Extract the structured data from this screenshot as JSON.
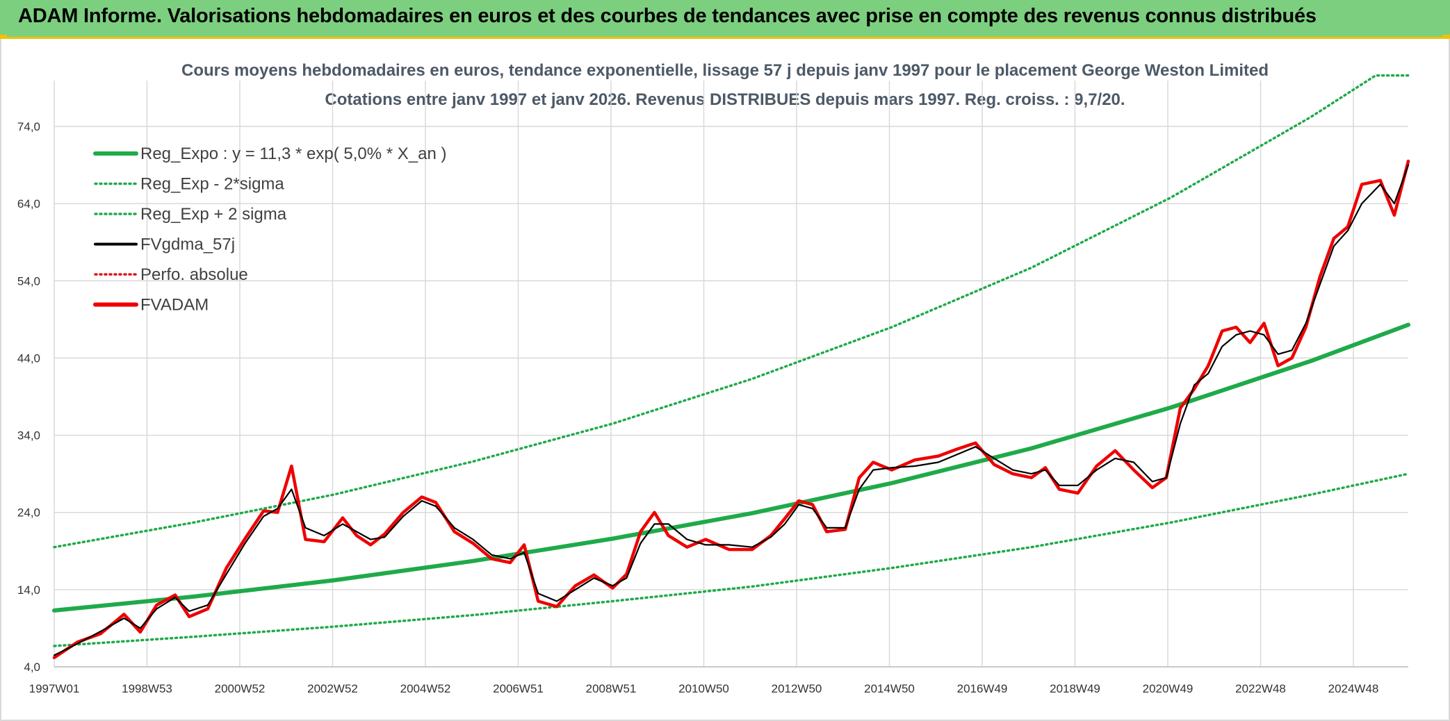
{
  "banner": {
    "title": "ADAM Informe. Valorisations hebdomadaires en euros et des courbes de tendances avec prise en compte des revenus connus distribués"
  },
  "chart_data": {
    "type": "line",
    "title": "Cours moyens hebdomadaires en euros, tendance exponentielle, lissage 57 j depuis janv 1997 pour le placement George Weston Limited",
    "subtitle": "Cotations entre janv 1997 et janv 2026. Revenus DISTRIBUES depuis mars 1997. Reg. croiss. : 9,7/20.",
    "xlabel": "",
    "ylabel": "",
    "ylim": [
      4,
      81
    ],
    "yticks": [
      "4,0",
      "14,0",
      "24,0",
      "34,0",
      "44,0",
      "54,0",
      "64,0",
      "74,0"
    ],
    "xticks": [
      "1997W01",
      "1998W53",
      "2000W52",
      "2002W52",
      "2004W52",
      "2006W51",
      "2008W51",
      "2010W50",
      "2012W50",
      "2014W50",
      "2016W49",
      "2018W49",
      "2020W49",
      "2022W48",
      "2024W48"
    ],
    "xlim": [
      1997.0,
      2026.1
    ],
    "grid": true,
    "legend_position": "top-left",
    "colors": {
      "trend": "#1faa4a",
      "band": "#1faa4a",
      "smooth": "#000000",
      "perfo": "#e0141c",
      "price": "#ee0000"
    },
    "series": [
      {
        "name": "Reg_Expo : y = 11,3 * exp( 5,0% *  X_an )",
        "style": "solid-thick",
        "color": "#1faa4a",
        "x": [
          1997.0,
          2000.0,
          2003.0,
          2006.0,
          2009.0,
          2012.0,
          2015.0,
          2018.0,
          2021.0,
          2024.0,
          2026.1
        ],
        "y": [
          11.3,
          13.1,
          15.2,
          17.7,
          20.6,
          23.9,
          27.8,
          32.3,
          37.6,
          43.6,
          48.3
        ]
      },
      {
        "name": "Reg_Exp - 2*sigma",
        "style": "dotted",
        "color": "#1faa4a",
        "x": [
          1997.0,
          2000.0,
          2003.0,
          2006.0,
          2009.0,
          2012.0,
          2015.0,
          2018.0,
          2021.0,
          2024.0,
          2026.1
        ],
        "y": [
          6.7,
          7.9,
          9.2,
          10.7,
          12.5,
          14.4,
          16.8,
          19.5,
          22.7,
          26.3,
          29.0
        ]
      },
      {
        "name": "Reg_Exp + 2 sigma",
        "style": "dotted",
        "color": "#1faa4a",
        "x": [
          1997.0,
          2000.0,
          2003.0,
          2006.0,
          2009.0,
          2012.0,
          2015.0,
          2018.0,
          2021.0,
          2024.0,
          2025.4,
          2026.1
        ],
        "y": [
          19.5,
          22.7,
          26.3,
          30.6,
          35.5,
          41.3,
          48.0,
          55.7,
          64.8,
          75.2,
          80.6,
          80.6
        ]
      },
      {
        "name": "FVgdma_57j",
        "style": "solid",
        "color": "#000000",
        "x": [
          1997.0,
          1997.5,
          1998.0,
          1998.5,
          1998.85,
          1999.2,
          1999.6,
          1999.9,
          2000.3,
          2000.7,
          2001.1,
          2001.5,
          2001.8,
          2002.1,
          2002.4,
          2002.8,
          2003.2,
          2003.5,
          2003.8,
          2004.1,
          2004.5,
          2004.9,
          2005.2,
          2005.6,
          2006.0,
          2006.4,
          2006.8,
          2007.1,
          2007.4,
          2007.8,
          2008.2,
          2008.6,
          2009.0,
          2009.3,
          2009.6,
          2009.9,
          2010.2,
          2010.6,
          2011.0,
          2011.5,
          2012.0,
          2012.4,
          2012.7,
          2013.0,
          2013.3,
          2013.6,
          2014.0,
          2014.3,
          2014.6,
          2015.0,
          2015.5,
          2016.0,
          2016.4,
          2016.8,
          2017.2,
          2017.6,
          2018.0,
          2018.3,
          2018.6,
          2019.0,
          2019.4,
          2019.8,
          2020.2,
          2020.6,
          2020.9,
          2021.2,
          2021.5,
          2021.8,
          2022.1,
          2022.4,
          2022.7,
          2023.0,
          2023.3,
          2023.6,
          2023.9,
          2024.2,
          2024.5,
          2024.8,
          2025.1,
          2025.5,
          2025.8,
          2026.1
        ],
        "y": [
          5.5,
          7.0,
          8.6,
          10.3,
          9.0,
          11.5,
          13.0,
          11.2,
          12.0,
          16.0,
          20.0,
          23.5,
          24.5,
          27.0,
          22.0,
          21.0,
          22.5,
          21.5,
          20.5,
          20.8,
          23.5,
          25.5,
          24.8,
          22.0,
          20.5,
          18.5,
          18.0,
          18.8,
          13.5,
          12.5,
          14.0,
          15.5,
          14.5,
          15.5,
          20.0,
          22.5,
          22.5,
          20.5,
          19.8,
          19.8,
          19.5,
          20.8,
          22.5,
          25.0,
          24.5,
          22.0,
          22.0,
          27.0,
          29.5,
          29.8,
          30.0,
          30.5,
          31.5,
          32.5,
          31.0,
          29.5,
          29.0,
          29.5,
          27.5,
          27.5,
          29.5,
          31.0,
          30.5,
          28.0,
          28.5,
          35.5,
          40.5,
          42.0,
          45.5,
          47.0,
          47.5,
          47.0,
          44.5,
          45.0,
          48.5,
          53.5,
          58.5,
          60.5,
          64.0,
          66.5,
          64.0,
          69.0
        ]
      },
      {
        "name": "Perfo. absolue",
        "style": "dotted",
        "color": "#e0141c",
        "x": [],
        "y": []
      },
      {
        "name": "FVADAM",
        "style": "solid-thick",
        "color": "#ee0000",
        "x": [
          1997.0,
          1997.5,
          1998.0,
          1998.5,
          1998.85,
          1999.2,
          1999.6,
          1999.9,
          2000.3,
          2000.7,
          2001.1,
          2001.5,
          2001.8,
          2002.1,
          2002.4,
          2002.8,
          2003.2,
          2003.5,
          2003.8,
          2004.1,
          2004.5,
          2004.9,
          2005.2,
          2005.6,
          2006.0,
          2006.4,
          2006.8,
          2007.1,
          2007.4,
          2007.8,
          2008.2,
          2008.6,
          2009.0,
          2009.3,
          2009.6,
          2009.9,
          2010.2,
          2010.6,
          2011.0,
          2011.5,
          2012.0,
          2012.4,
          2012.7,
          2013.0,
          2013.3,
          2013.6,
          2014.0,
          2014.3,
          2014.6,
          2015.0,
          2015.5,
          2016.0,
          2016.4,
          2016.8,
          2017.2,
          2017.6,
          2018.0,
          2018.3,
          2018.6,
          2019.0,
          2019.4,
          2019.8,
          2020.2,
          2020.6,
          2020.9,
          2021.2,
          2021.5,
          2021.8,
          2022.1,
          2022.4,
          2022.7,
          2023.0,
          2023.3,
          2023.6,
          2023.9,
          2024.2,
          2024.5,
          2024.8,
          2025.1,
          2025.5,
          2025.8,
          2026.1
        ],
        "y": [
          5.2,
          7.2,
          8.3,
          10.8,
          8.5,
          12.0,
          13.3,
          10.5,
          11.5,
          16.8,
          20.6,
          24.2,
          24.0,
          30.0,
          20.5,
          20.2,
          23.3,
          21.0,
          19.8,
          21.2,
          24.0,
          26.0,
          25.3,
          21.5,
          20.0,
          18.0,
          17.5,
          19.8,
          12.5,
          11.8,
          14.5,
          15.9,
          14.2,
          16.0,
          21.5,
          24.0,
          21.0,
          19.5,
          20.5,
          19.2,
          19.2,
          21.0,
          23.2,
          25.5,
          25.0,
          21.5,
          21.8,
          28.5,
          30.5,
          29.5,
          30.8,
          31.3,
          32.2,
          33.0,
          30.2,
          29.0,
          28.5,
          29.8,
          27.0,
          26.5,
          30.0,
          32.0,
          29.5,
          27.2,
          28.5,
          37.5,
          40.0,
          43.0,
          47.5,
          48.0,
          46.0,
          48.5,
          43.0,
          44.0,
          48.0,
          54.5,
          59.5,
          61.0,
          66.5,
          67.0,
          62.5,
          69.5
        ]
      }
    ]
  }
}
